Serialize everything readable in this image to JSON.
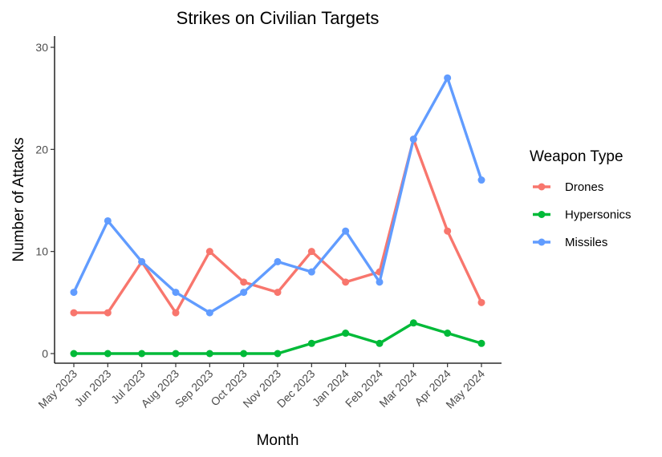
{
  "chart_data": {
    "type": "line",
    "title": "Strikes on Civilian Targets",
    "xlabel": "Month",
    "ylabel": "Number of Attacks",
    "categories": [
      "May 2023",
      "Jun 2023",
      "Jul 2023",
      "Aug 2023",
      "Sep 2023",
      "Oct 2023",
      "Nov 2023",
      "Dec 2023",
      "Jan 2024",
      "Feb 2024",
      "Mar 2024",
      "Apr 2024",
      "May 2024"
    ],
    "ylim": [
      0,
      30
    ],
    "yticks": [
      0,
      10,
      20,
      30
    ],
    "ytick_labels": [
      "0",
      "10",
      "20",
      "30"
    ],
    "grid": false,
    "legend": {
      "title": "Weapon Type",
      "placement": "right"
    },
    "series": [
      {
        "name": "Drones",
        "color": "#F8766D",
        "values": [
          4,
          4,
          9,
          4,
          10,
          7,
          6,
          10,
          7,
          8,
          21,
          12,
          5
        ]
      },
      {
        "name": "Hypersonics",
        "color": "#00BA38",
        "values": [
          0,
          0,
          0,
          0,
          0,
          0,
          0,
          1,
          2,
          1,
          3,
          2,
          1
        ]
      },
      {
        "name": "Missiles",
        "color": "#619CFF",
        "values": [
          6,
          13,
          9,
          6,
          4,
          6,
          9,
          8,
          12,
          7,
          21,
          27,
          17
        ]
      }
    ]
  }
}
